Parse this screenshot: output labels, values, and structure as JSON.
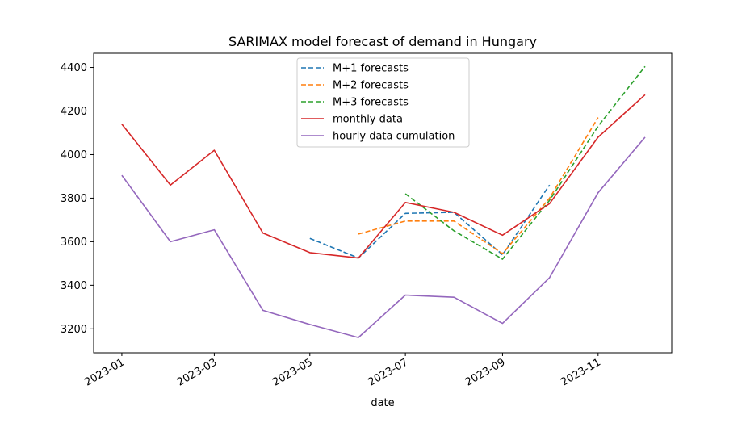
{
  "chart_data": {
    "type": "line",
    "title": "SARIMAX model forecast of demand in Hungary",
    "xlabel": "date",
    "ylabel": "",
    "x_ticks": [
      "2023-01",
      "2023-03",
      "2023-05",
      "2023-07",
      "2023-09",
      "2023-11"
    ],
    "y_ticks": [
      3200,
      3400,
      3600,
      3800,
      4000,
      4200,
      4400
    ],
    "ylim": [
      3090,
      4465
    ],
    "xlim": [
      "2022-12-14",
      "2023-12-18"
    ],
    "legend_position": "upper center",
    "grid": false,
    "series": [
      {
        "name": "M+1 forecasts",
        "color": "#1f77b4",
        "style": "dashed",
        "points": [
          [
            "2023-05-01",
            3615
          ],
          [
            "2023-06-01",
            3525
          ],
          [
            "2023-07-01",
            3730
          ],
          [
            "2023-08-01",
            3735
          ],
          [
            "2023-09-01",
            3540
          ],
          [
            "2023-10-01",
            3860
          ]
        ]
      },
      {
        "name": "M+2 forecasts",
        "color": "#ff7f0e",
        "style": "dashed",
        "points": [
          [
            "2023-06-01",
            3635
          ],
          [
            "2023-07-01",
            3695
          ],
          [
            "2023-08-01",
            3695
          ],
          [
            "2023-09-01",
            3545
          ],
          [
            "2023-10-01",
            3800
          ],
          [
            "2023-11-01",
            4170
          ]
        ]
      },
      {
        "name": "M+3 forecasts",
        "color": "#2ca02c",
        "style": "dashed",
        "points": [
          [
            "2023-07-01",
            3820
          ],
          [
            "2023-08-01",
            3650
          ],
          [
            "2023-09-01",
            3520
          ],
          [
            "2023-10-01",
            3790
          ],
          [
            "2023-11-01",
            4130
          ],
          [
            "2023-12-01",
            4405
          ]
        ]
      },
      {
        "name": "monthly data",
        "color": "#d62728",
        "style": "solid",
        "points": [
          [
            "2023-01-01",
            4140
          ],
          [
            "2023-02-01",
            3860
          ],
          [
            "2023-03-01",
            4020
          ],
          [
            "2023-04-01",
            3640
          ],
          [
            "2023-05-01",
            3550
          ],
          [
            "2023-06-01",
            3525
          ],
          [
            "2023-07-01",
            3780
          ],
          [
            "2023-08-01",
            3735
          ],
          [
            "2023-09-01",
            3630
          ],
          [
            "2023-10-01",
            3775
          ],
          [
            "2023-11-01",
            4080
          ],
          [
            "2023-12-01",
            4275
          ]
        ]
      },
      {
        "name": "hourly data cumulation",
        "color": "#9467bd",
        "style": "solid",
        "points": [
          [
            "2023-01-01",
            3905
          ],
          [
            "2023-02-01",
            3600
          ],
          [
            "2023-03-01",
            3655
          ],
          [
            "2023-04-01",
            3285
          ],
          [
            "2023-05-01",
            3220
          ],
          [
            "2023-06-01",
            3160
          ],
          [
            "2023-07-01",
            3355
          ],
          [
            "2023-08-01",
            3345
          ],
          [
            "2023-09-01",
            3225
          ],
          [
            "2023-10-01",
            3435
          ],
          [
            "2023-11-01",
            3825
          ],
          [
            "2023-12-01",
            4080
          ]
        ]
      }
    ]
  }
}
